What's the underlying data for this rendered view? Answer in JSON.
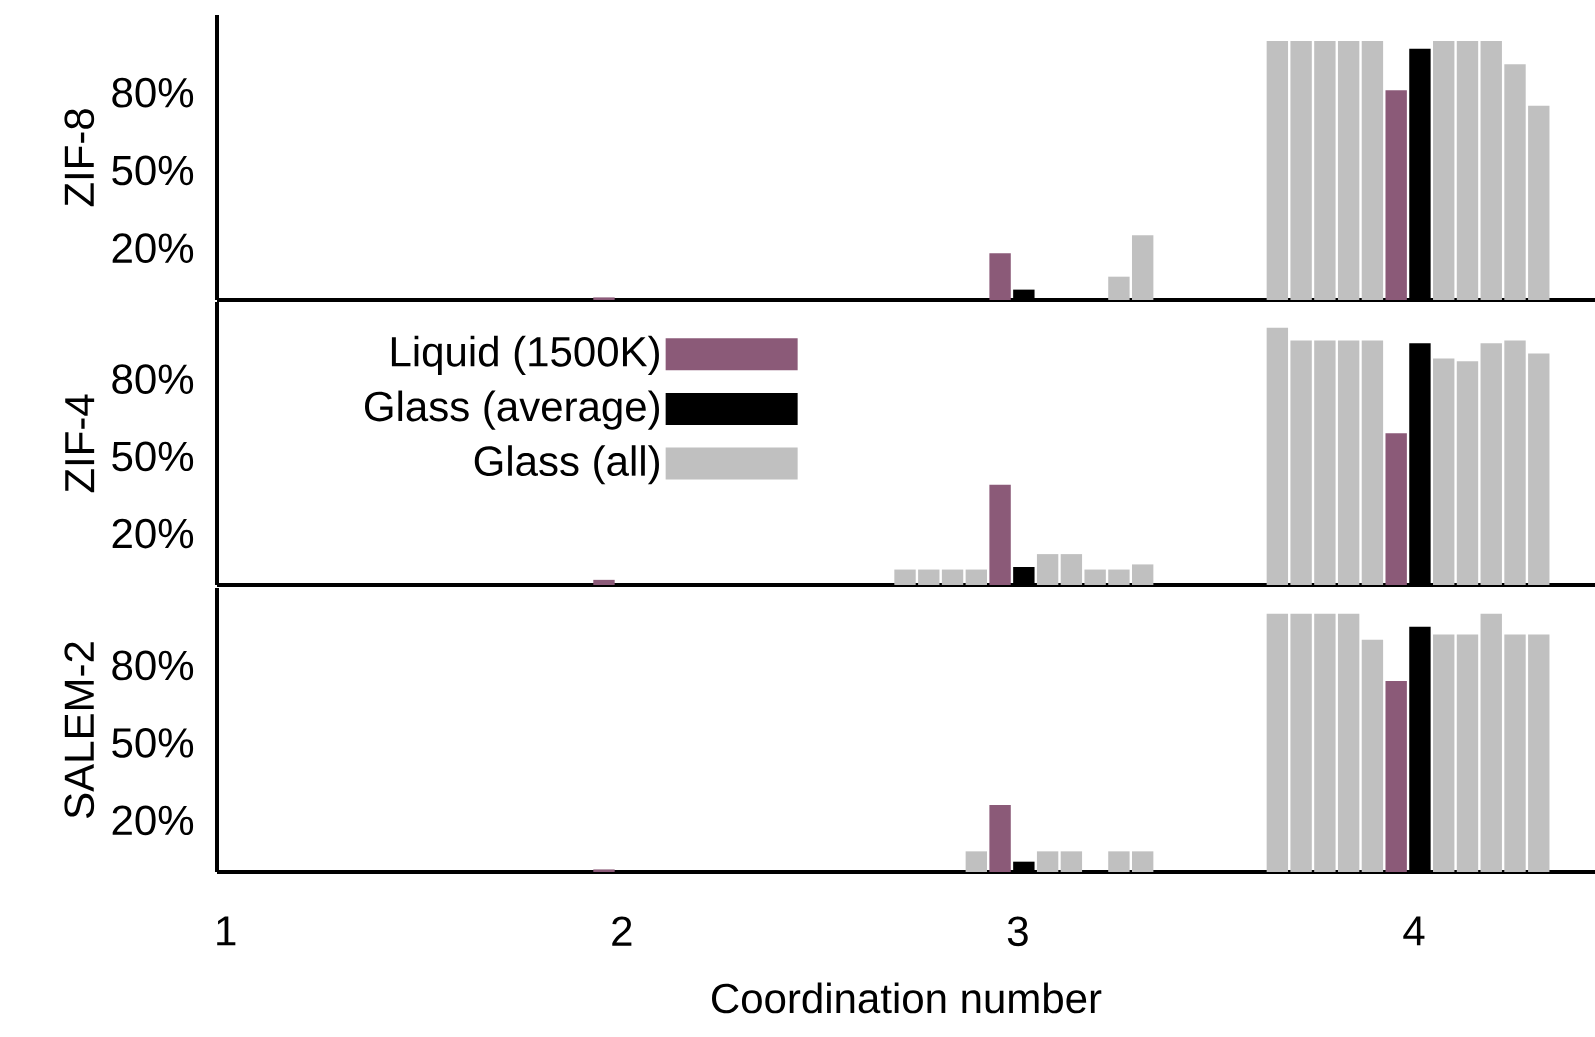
{
  "chart_data": [
    {
      "type": "bar",
      "ylabel": "ZIF-8",
      "xlim": [
        0.978,
        4.457
      ],
      "xticks": [
        1,
        2,
        3,
        4
      ],
      "ylim": [
        0,
        110
      ],
      "yticks": [
        {
          "value": 20,
          "label": "20%"
        },
        {
          "value": 50,
          "label": "50%"
        },
        {
          "value": 80,
          "label": "80%"
        }
      ],
      "tick_labels": "y",
      "grid": false,
      "series": [
        {
          "color": "#8b5a78",
          "x": [
            1.955,
            2.955,
            3.955
          ],
          "values": [
            1,
            18,
            81
          ]
        },
        {
          "color": "#000000",
          "x": [
            3.015,
            4.015
          ],
          "values": [
            4,
            97
          ]
        },
        {
          "color": "#c0c0c0",
          "x": [
            3.255,
            3.315,
            3.655,
            3.715,
            3.775,
            3.835,
            3.895,
            4.075,
            4.135,
            4.195,
            4.255,
            4.315
          ],
          "values": [
            9,
            25,
            100,
            100,
            100,
            100,
            100,
            100,
            100,
            100,
            91,
            75
          ]
        }
      ]
    },
    {
      "type": "bar",
      "ylabel": "ZIF-4",
      "xlim": [
        0.978,
        4.457
      ],
      "xticks": [
        1,
        2,
        3,
        4
      ],
      "ylim": [
        0,
        110
      ],
      "yticks": [
        {
          "value": 20,
          "label": "20%"
        },
        {
          "value": 50,
          "label": "50%"
        },
        {
          "value": 80,
          "label": "80%"
        }
      ],
      "tick_labels": "y",
      "grid": false,
      "legend": "top left",
      "series": [
        {
          "name": "Liquid (1500K)",
          "color": "#8b5a78",
          "x": [
            1.955,
            2.955,
            3.955
          ],
          "values": [
            2,
            39,
            59
          ]
        },
        {
          "name": "Glass (average)",
          "color": "#000000",
          "x": [
            3.015,
            4.015
          ],
          "values": [
            7,
            94
          ]
        },
        {
          "name": "Glass (all)",
          "color": "#c0c0c0",
          "x": [
            2.715,
            2.775,
            2.835,
            2.895,
            3.075,
            3.135,
            3.195,
            3.255,
            3.315,
            3.655,
            3.715,
            3.775,
            3.835,
            3.895,
            4.075,
            4.135,
            4.195,
            4.255,
            4.315
          ],
          "values": [
            6,
            6,
            6,
            6,
            12,
            12,
            6,
            6,
            8,
            100,
            95,
            95,
            95,
            95,
            88,
            87,
            94,
            95,
            90
          ]
        }
      ]
    },
    {
      "type": "bar",
      "ylabel": "SALEM-2",
      "xlabel": "Coordination number",
      "xlim": [
        0.978,
        4.457
      ],
      "xticks": [
        1,
        2,
        3,
        4
      ],
      "ylim": [
        0,
        110
      ],
      "yticks": [
        {
          "value": 20,
          "label": "20%"
        },
        {
          "value": 50,
          "label": "50%"
        },
        {
          "value": 80,
          "label": "80%"
        }
      ],
      "grid": false,
      "series": [
        {
          "color": "#8b5a78",
          "x": [
            1.955,
            2.955,
            3.955
          ],
          "values": [
            1,
            26,
            74
          ]
        },
        {
          "color": "#000000",
          "x": [
            3.015,
            4.015
          ],
          "values": [
            4,
            95
          ]
        },
        {
          "color": "#c0c0c0",
          "x": [
            2.895,
            3.075,
            3.135,
            3.255,
            3.315,
            3.655,
            3.715,
            3.775,
            3.835,
            3.895,
            4.075,
            4.135,
            4.195,
            4.255,
            4.315
          ],
          "values": [
            8,
            8,
            8,
            8,
            8,
            100,
            100,
            100,
            100,
            90,
            92,
            92,
            100,
            92,
            92
          ]
        }
      ]
    }
  ]
}
